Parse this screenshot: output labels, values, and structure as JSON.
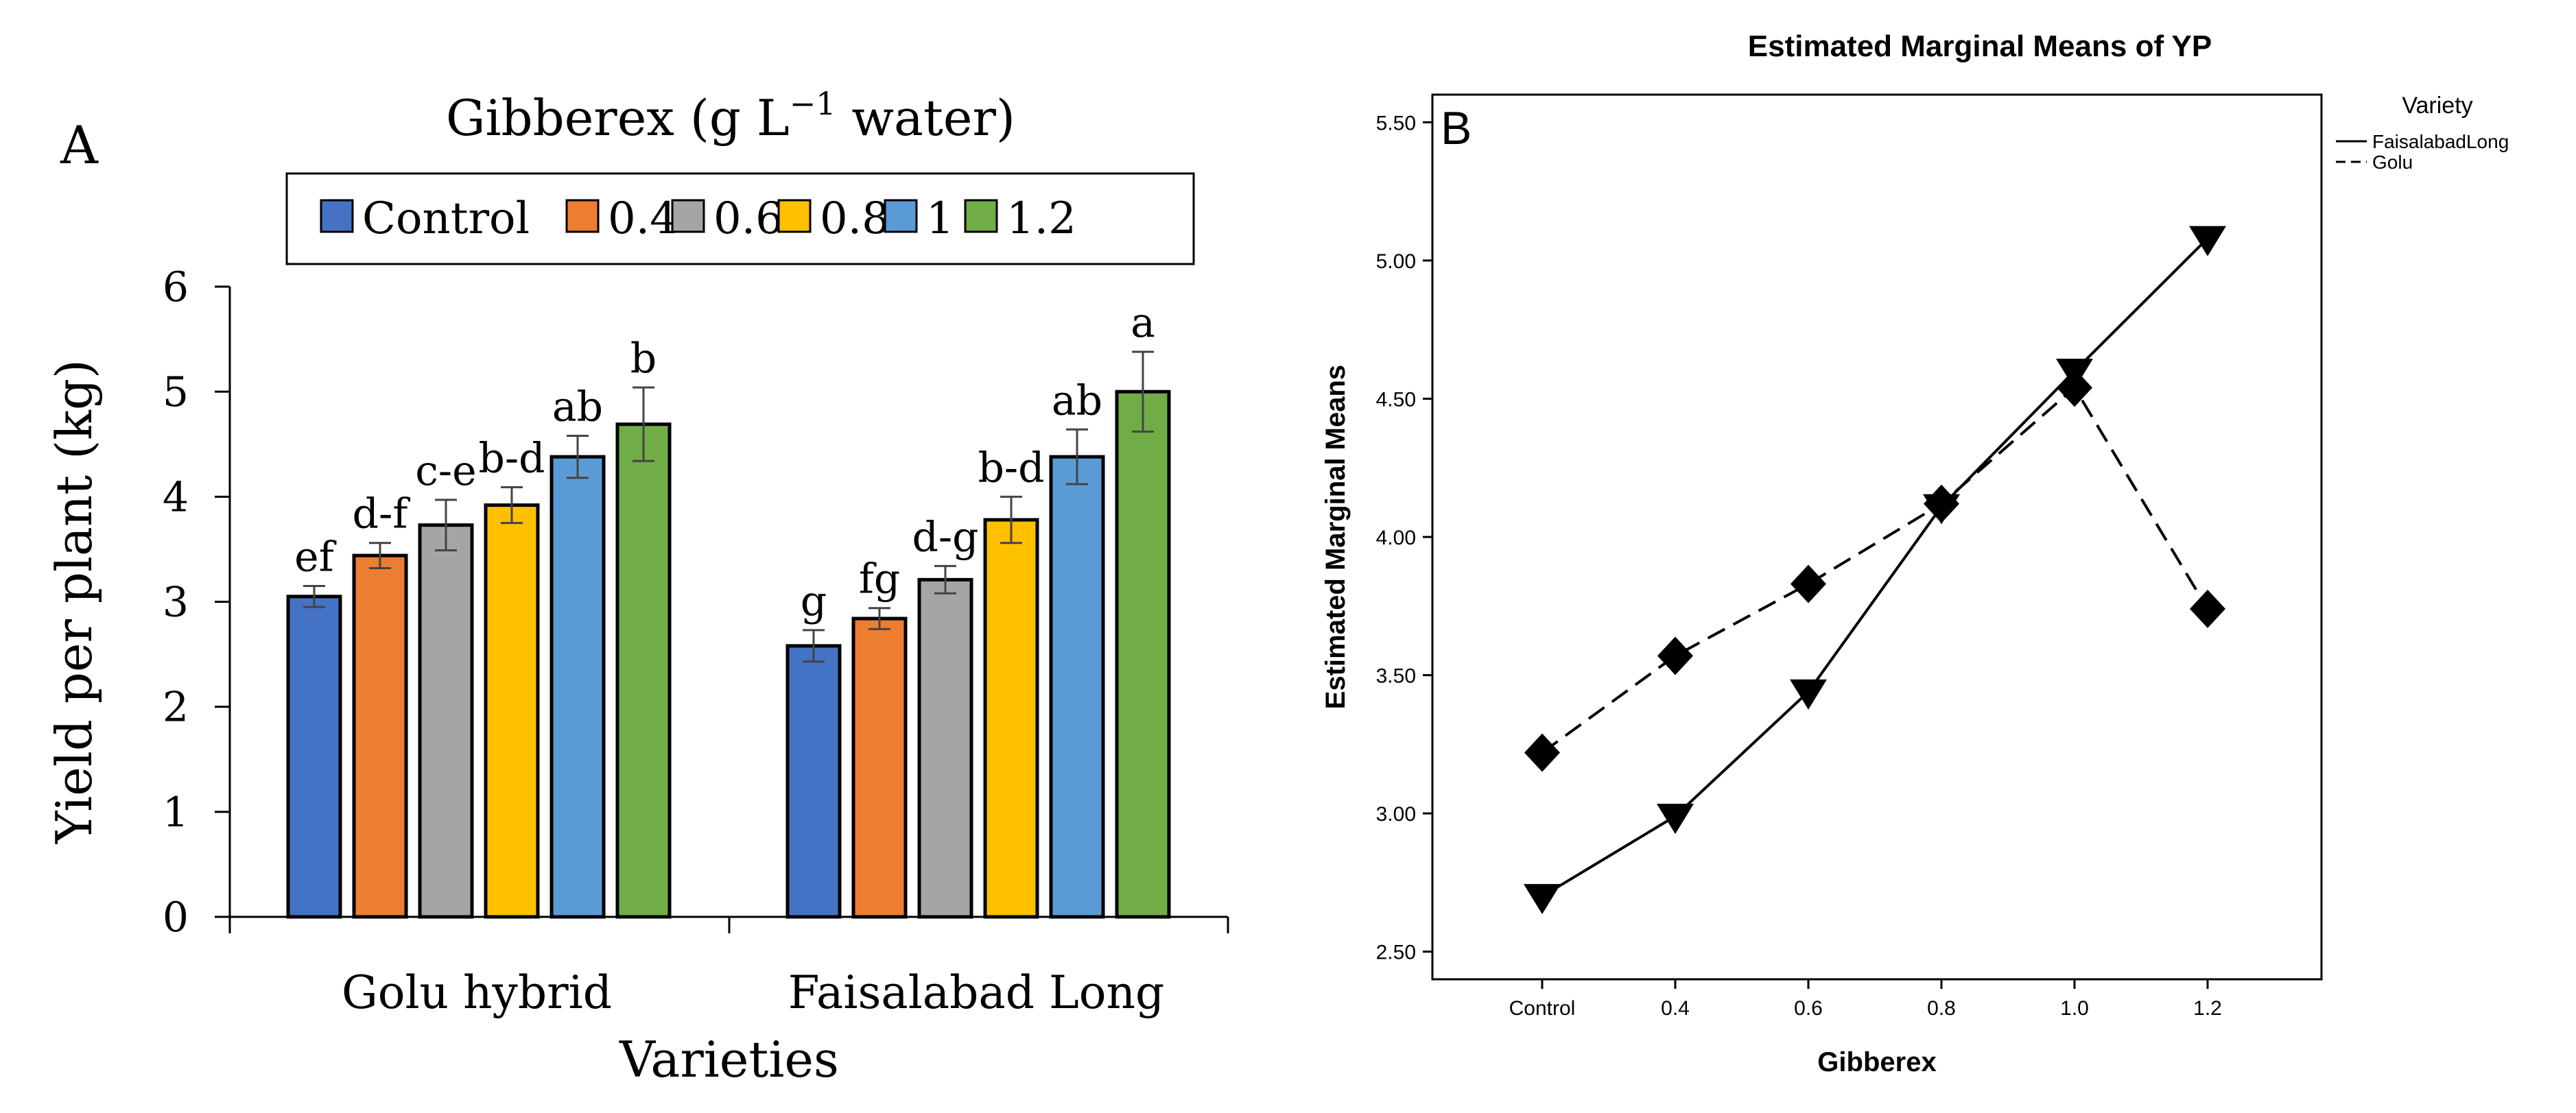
{
  "chart_data": [
    {
      "panel": "A",
      "type": "bar",
      "title": "Gibberex (g L−1 water)",
      "title_main": "Gibberex (g L",
      "title_sup": "−1",
      "title_end": " water)",
      "xlabel": "Varieties",
      "ylabel": "Yield per plant (kg)",
      "ylim": [
        0,
        6
      ],
      "yticks": [
        "0",
        "1",
        "2",
        "3",
        "4",
        "5",
        "6"
      ],
      "categories": [
        "Golu hybrid",
        "Faisalabad Long"
      ],
      "legend_position": "top",
      "series": [
        {
          "name": "Control",
          "color": "#4472C4",
          "values": [
            3.05,
            2.58
          ],
          "errors": [
            0.1,
            0.15
          ],
          "letters": [
            "ef",
            "g"
          ]
        },
        {
          "name": "0.4",
          "color": "#ED7D31",
          "values": [
            3.44,
            2.84
          ],
          "errors": [
            0.12,
            0.1
          ],
          "letters": [
            "d-f",
            "fg"
          ]
        },
        {
          "name": "0.6",
          "color": "#A5A5A5",
          "values": [
            3.73,
            3.21
          ],
          "errors": [
            0.24,
            0.13
          ],
          "letters": [
            "c-e",
            "d-g"
          ]
        },
        {
          "name": "0.8",
          "color": "#FFC000",
          "values": [
            3.92,
            3.78
          ],
          "errors": [
            0.17,
            0.22
          ],
          "letters": [
            "b-d",
            "b-d"
          ]
        },
        {
          "name": "1",
          "color": "#5B9BD5",
          "values": [
            4.38,
            4.38
          ],
          "errors": [
            0.2,
            0.26
          ],
          "letters": [
            "ab",
            "ab"
          ]
        },
        {
          "name": "1.2",
          "color": "#70AD47",
          "values": [
            4.69,
            5.0
          ],
          "errors": [
            0.35,
            0.38
          ],
          "letters": [
            "b",
            "a"
          ]
        }
      ]
    },
    {
      "panel": "B",
      "type": "line",
      "title": "Estimated Marginal Means of YP",
      "xlabel": "Gibberex",
      "ylabel": "Estimated Marginal Means",
      "ylim": [
        2.4,
        5.6
      ],
      "yticks": [
        "2.50",
        "3.00",
        "3.50",
        "4.00",
        "4.50",
        "5.00",
        "5.50"
      ],
      "x": [
        "Control",
        "0.4",
        "0.6",
        "0.8",
        "1.0",
        "1.2"
      ],
      "legend_title": "Variety",
      "legend_position": "right",
      "series": [
        {
          "name": "FaisalabadLong",
          "marker": "triangle-down",
          "dash": "solid",
          "values": [
            2.7,
            2.99,
            3.44,
            4.11,
            4.6,
            5.08
          ]
        },
        {
          "name": "Golu",
          "marker": "diamond",
          "dash": "dashed",
          "values": [
            3.22,
            3.57,
            3.83,
            4.12,
            4.54,
            3.74
          ]
        }
      ]
    }
  ]
}
